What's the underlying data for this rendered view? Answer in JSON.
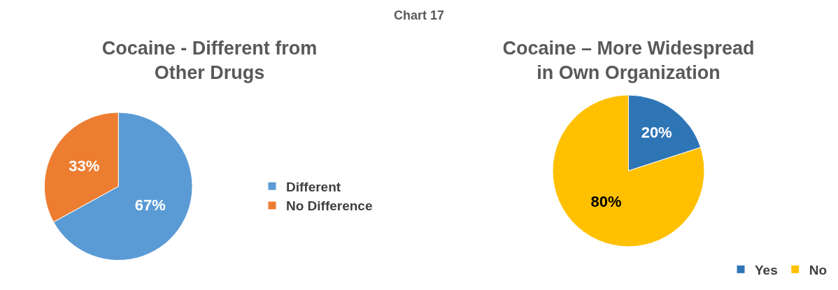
{
  "chart_data": [
    {
      "type": "pie",
      "title": "Cocaine - Different from Other Drugs",
      "annotations": [
        "Chart 17"
      ],
      "categories": [
        "Different",
        "No Difference"
      ],
      "values": [
        67,
        33
      ],
      "colors": [
        "#5b9bd5",
        "#ed7d31"
      ],
      "value_labels": [
        "67%",
        "33%"
      ],
      "legend": "right"
    },
    {
      "type": "pie",
      "title": "Cocaine – More Widespread in Own Organization",
      "categories": [
        "Yes",
        "No"
      ],
      "values": [
        20,
        80
      ],
      "colors": [
        "#2e75b6",
        "#ffc000"
      ],
      "value_labels": [
        "20%",
        "80%"
      ],
      "legend": "bottom right"
    }
  ]
}
